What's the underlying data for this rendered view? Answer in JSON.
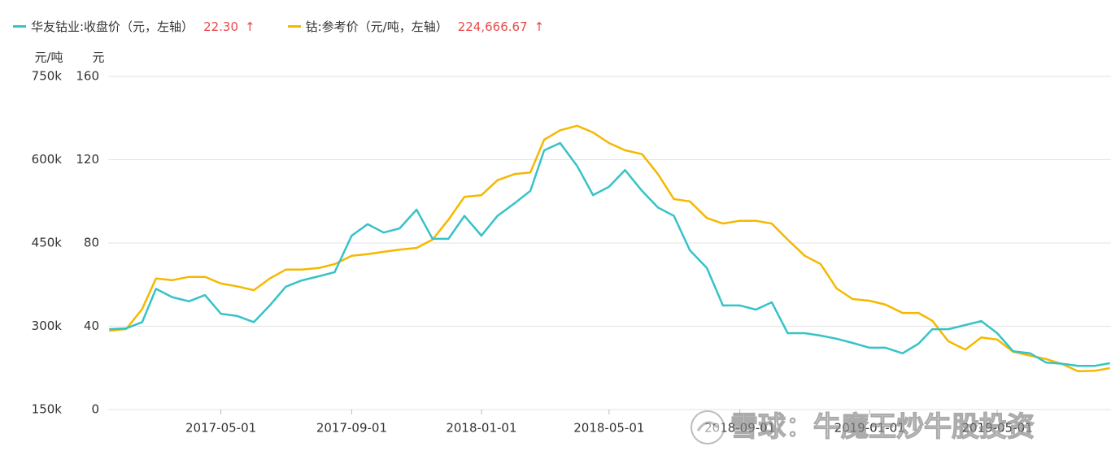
{
  "chart_data": {
    "type": "line",
    "x": [
      "2017-01-16",
      "2017-02-01",
      "2017-02-16",
      "2017-03-01",
      "2017-03-16",
      "2017-04-01",
      "2017-04-16",
      "2017-05-01",
      "2017-05-16",
      "2017-06-01",
      "2017-06-16",
      "2017-07-01",
      "2017-07-16",
      "2017-08-01",
      "2017-08-16",
      "2017-09-01",
      "2017-09-16",
      "2017-10-01",
      "2017-10-16",
      "2017-11-01",
      "2017-11-16",
      "2017-12-01",
      "2017-12-16",
      "2018-01-01",
      "2018-01-16",
      "2018-02-01",
      "2018-02-16",
      "2018-03-01",
      "2018-03-16",
      "2018-04-01",
      "2018-04-16",
      "2018-05-01",
      "2018-05-16",
      "2018-06-01",
      "2018-06-16",
      "2018-07-01",
      "2018-07-16",
      "2018-08-01",
      "2018-08-16",
      "2018-09-01",
      "2018-09-16",
      "2018-10-01",
      "2018-10-16",
      "2018-11-01",
      "2018-11-16",
      "2018-12-01",
      "2018-12-16",
      "2019-01-01",
      "2019-01-16",
      "2019-02-01",
      "2019-02-16",
      "2019-03-01",
      "2019-03-16",
      "2019-04-01",
      "2019-04-16",
      "2019-05-01",
      "2019-05-16",
      "2019-06-01",
      "2019-06-16",
      "2019-07-01",
      "2019-07-16",
      "2019-08-01",
      "2019-08-15"
    ],
    "xlim": [
      "2017-01-15",
      "2019-08-16"
    ],
    "xticks": [
      "2017-05-01",
      "2017-09-01",
      "2018-01-01",
      "2018-05-01",
      "2018-09-01",
      "2019-01-01",
      "2019-05-01"
    ],
    "y_label": "元",
    "y2_label": "元/吨",
    "ylim": [
      0,
      160
    ],
    "yticks": [
      0,
      40,
      80,
      120,
      160
    ],
    "y2lim": [
      150000,
      750000
    ],
    "y2ticks": [
      {
        "value": 150000,
        "label": "150k"
      },
      {
        "value": 300000,
        "label": "300k"
      },
      {
        "value": 450000,
        "label": "450k"
      },
      {
        "value": 600000,
        "label": "600k"
      },
      {
        "value": 750000,
        "label": "750k"
      }
    ],
    "grid": true,
    "series": [
      {
        "name": "华友钴业:收盘价（元，左轴）",
        "color": "#36c3c8",
        "axis": "y",
        "latest": {
          "value": 22.3,
          "label": "22.30"
        },
        "values": [
          38.6,
          39,
          42,
          58,
          54,
          52,
          55,
          46,
          45,
          42,
          50,
          59,
          62,
          64,
          66,
          83.5,
          89,
          85,
          87,
          96,
          82,
          82,
          93,
          83.5,
          93,
          99,
          105,
          124.5,
          128,
          117,
          103,
          107,
          115,
          105,
          97,
          93,
          76.5,
          68,
          50,
          50,
          48,
          51.5,
          36.7,
          36.7,
          35.5,
          34,
          32,
          29.7,
          29.7,
          27,
          31.6,
          38.6,
          38.6,
          40.6,
          42.5,
          36.7,
          28,
          27,
          22.6,
          22,
          21,
          21,
          22.3
        ]
      },
      {
        "name": "钴:参考价（元/吨，左轴）",
        "color": "#f5b800",
        "axis": "y2",
        "latest": {
          "value": 224666.67,
          "label": "224,666.67"
        },
        "values": [
          292000,
          295000,
          331000,
          386000,
          383000,
          389000,
          389000,
          377000,
          372000,
          365000,
          386000,
          402000,
          402000,
          405000,
          412000,
          427000,
          430000,
          434000,
          438000,
          441000,
          456000,
          492000,
          533000,
          536000,
          563000,
          574000,
          577000,
          636000,
          653000,
          661000,
          649000,
          630000,
          617000,
          610000,
          574000,
          529000,
          525000,
          495000,
          485000,
          490000,
          490000,
          485000,
          456000,
          427000,
          412000,
          368000,
          349000,
          346000,
          339000,
          324000,
          324000,
          310000,
          273000,
          258000,
          280000,
          276000,
          254000,
          247000,
          241000,
          232000,
          219000,
          220000,
          224666.67
        ]
      }
    ],
    "watermark": "雪球：牛魔王炒牛股投资"
  }
}
